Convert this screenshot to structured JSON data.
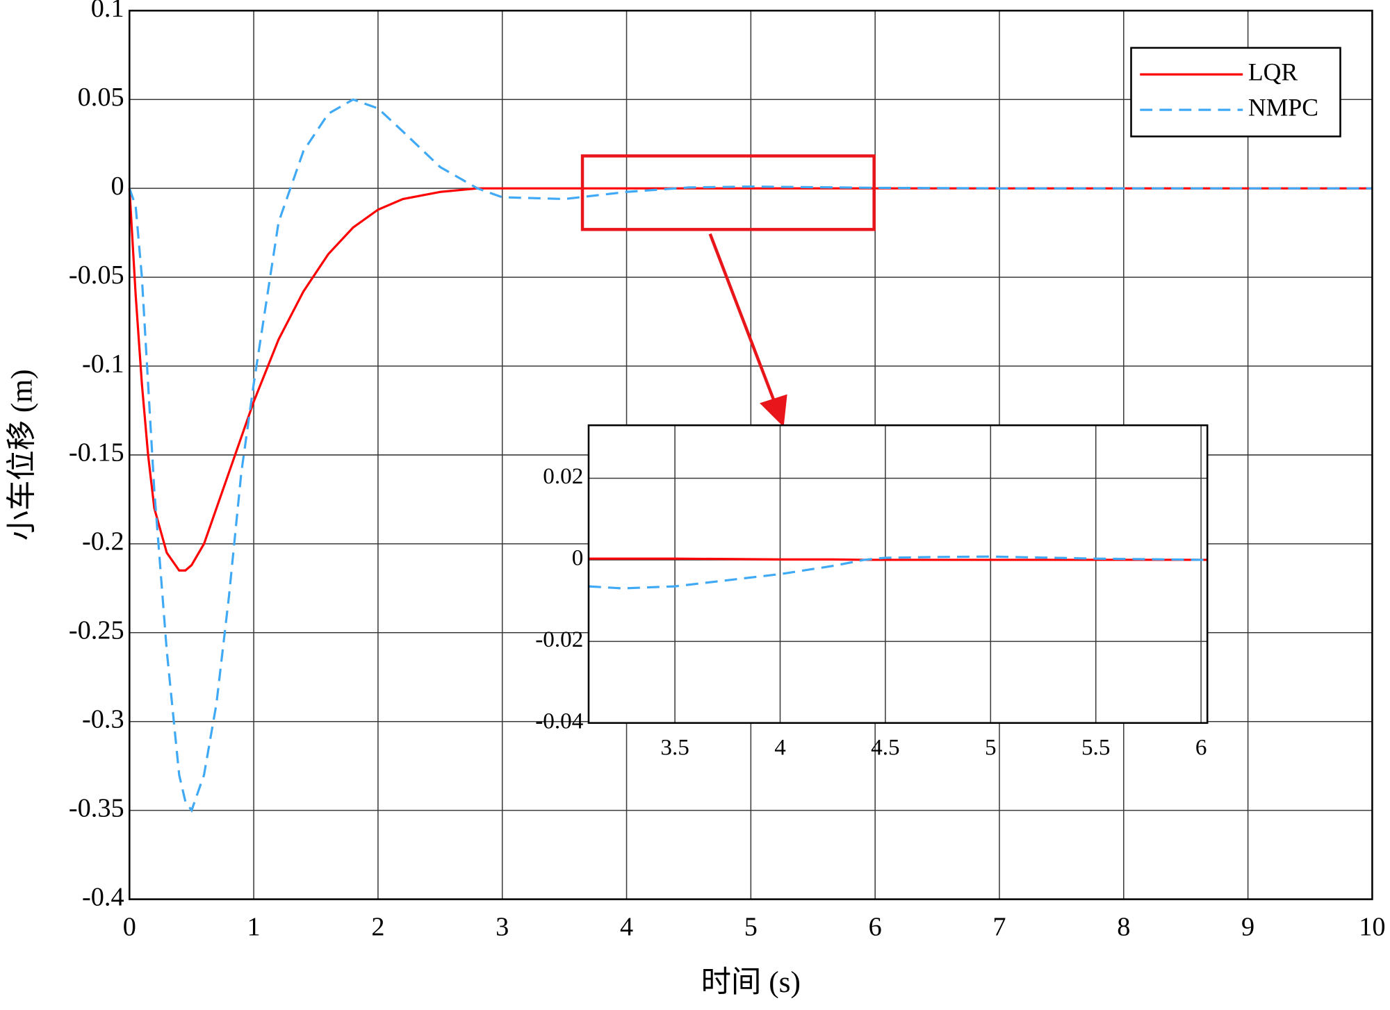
{
  "chart_data": [
    {
      "type": "line",
      "xlabel": "时间 (s)",
      "ylabel": "小车位移 (m)",
      "x": [
        0,
        0.05,
        0.1,
        0.15,
        0.2,
        0.3,
        0.4,
        0.45,
        0.5,
        0.6,
        0.7,
        0.8,
        0.9,
        1.0,
        1.2,
        1.4,
        1.6,
        1.8,
        2.0,
        2.2,
        2.5,
        2.8,
        3.0,
        3.5,
        4.0,
        4.5,
        5.0,
        6.0,
        7.0,
        8.0,
        9.0,
        10.0
      ],
      "series": [
        {
          "name": "LQR",
          "color": "#ff0000",
          "linestyle": "solid",
          "values": [
            0,
            -0.06,
            -0.11,
            -0.15,
            -0.18,
            -0.205,
            -0.215,
            -0.215,
            -0.212,
            -0.2,
            -0.18,
            -0.16,
            -0.14,
            -0.12,
            -0.085,
            -0.058,
            -0.037,
            -0.022,
            -0.012,
            -0.006,
            -0.002,
            0,
            0,
            0,
            0,
            0,
            0,
            0,
            0,
            0,
            0,
            0
          ]
        },
        {
          "name": "NMPC",
          "color": "#3fa9f5",
          "linestyle": "dashed",
          "values": [
            0,
            -0.01,
            -0.05,
            -0.11,
            -0.17,
            -0.26,
            -0.33,
            -0.345,
            -0.35,
            -0.33,
            -0.29,
            -0.23,
            -0.16,
            -0.11,
            -0.019,
            0.021,
            0.042,
            0.05,
            0.045,
            0.032,
            0.012,
            0,
            -0.005,
            -0.006,
            -0.002,
            0.0005,
            0.001,
            0.0003,
            0,
            0,
            0,
            0
          ]
        }
      ],
      "xlim": [
        0,
        10
      ],
      "ylim": [
        -0.4,
        0.1
      ],
      "xticks": [
        0,
        1,
        2,
        3,
        4,
        5,
        6,
        7,
        8,
        9,
        10
      ],
      "yticks": [
        0.1,
        0.05,
        0,
        -0.05,
        -0.1,
        -0.15,
        -0.2,
        -0.25,
        -0.3,
        -0.35,
        -0.4
      ],
      "grid": true,
      "legend": "upper right"
    },
    {
      "type": "line",
      "x": [
        3.09,
        3.25,
        3.5,
        3.75,
        4.0,
        4.25,
        4.4,
        4.5,
        4.75,
        5.0,
        5.5,
        6.0,
        6.03
      ],
      "series": [
        {
          "color": "#ff0000",
          "linestyle": "solid",
          "values": [
            0.0003,
            0.0003,
            0.0003,
            0.0002,
            0.0001,
            0.0001,
            0,
            0,
            0,
            0,
            0,
            0,
            0
          ]
        },
        {
          "color": "#3fa9f5",
          "linestyle": "dashed",
          "values": [
            -0.0065,
            -0.007,
            -0.0065,
            -0.005,
            -0.0035,
            -0.0015,
            0,
            0.0005,
            0.0007,
            0.0008,
            0.0003,
            0,
            0
          ]
        }
      ],
      "xlim": [
        3.09,
        6.03
      ],
      "ylim": [
        -0.04,
        0.033
      ],
      "xticks": [
        3.5,
        4,
        4.5,
        5,
        5.5,
        6
      ],
      "yticks": [
        0.02,
        0,
        -0.02,
        -0.04
      ],
      "grid": true
    }
  ]
}
